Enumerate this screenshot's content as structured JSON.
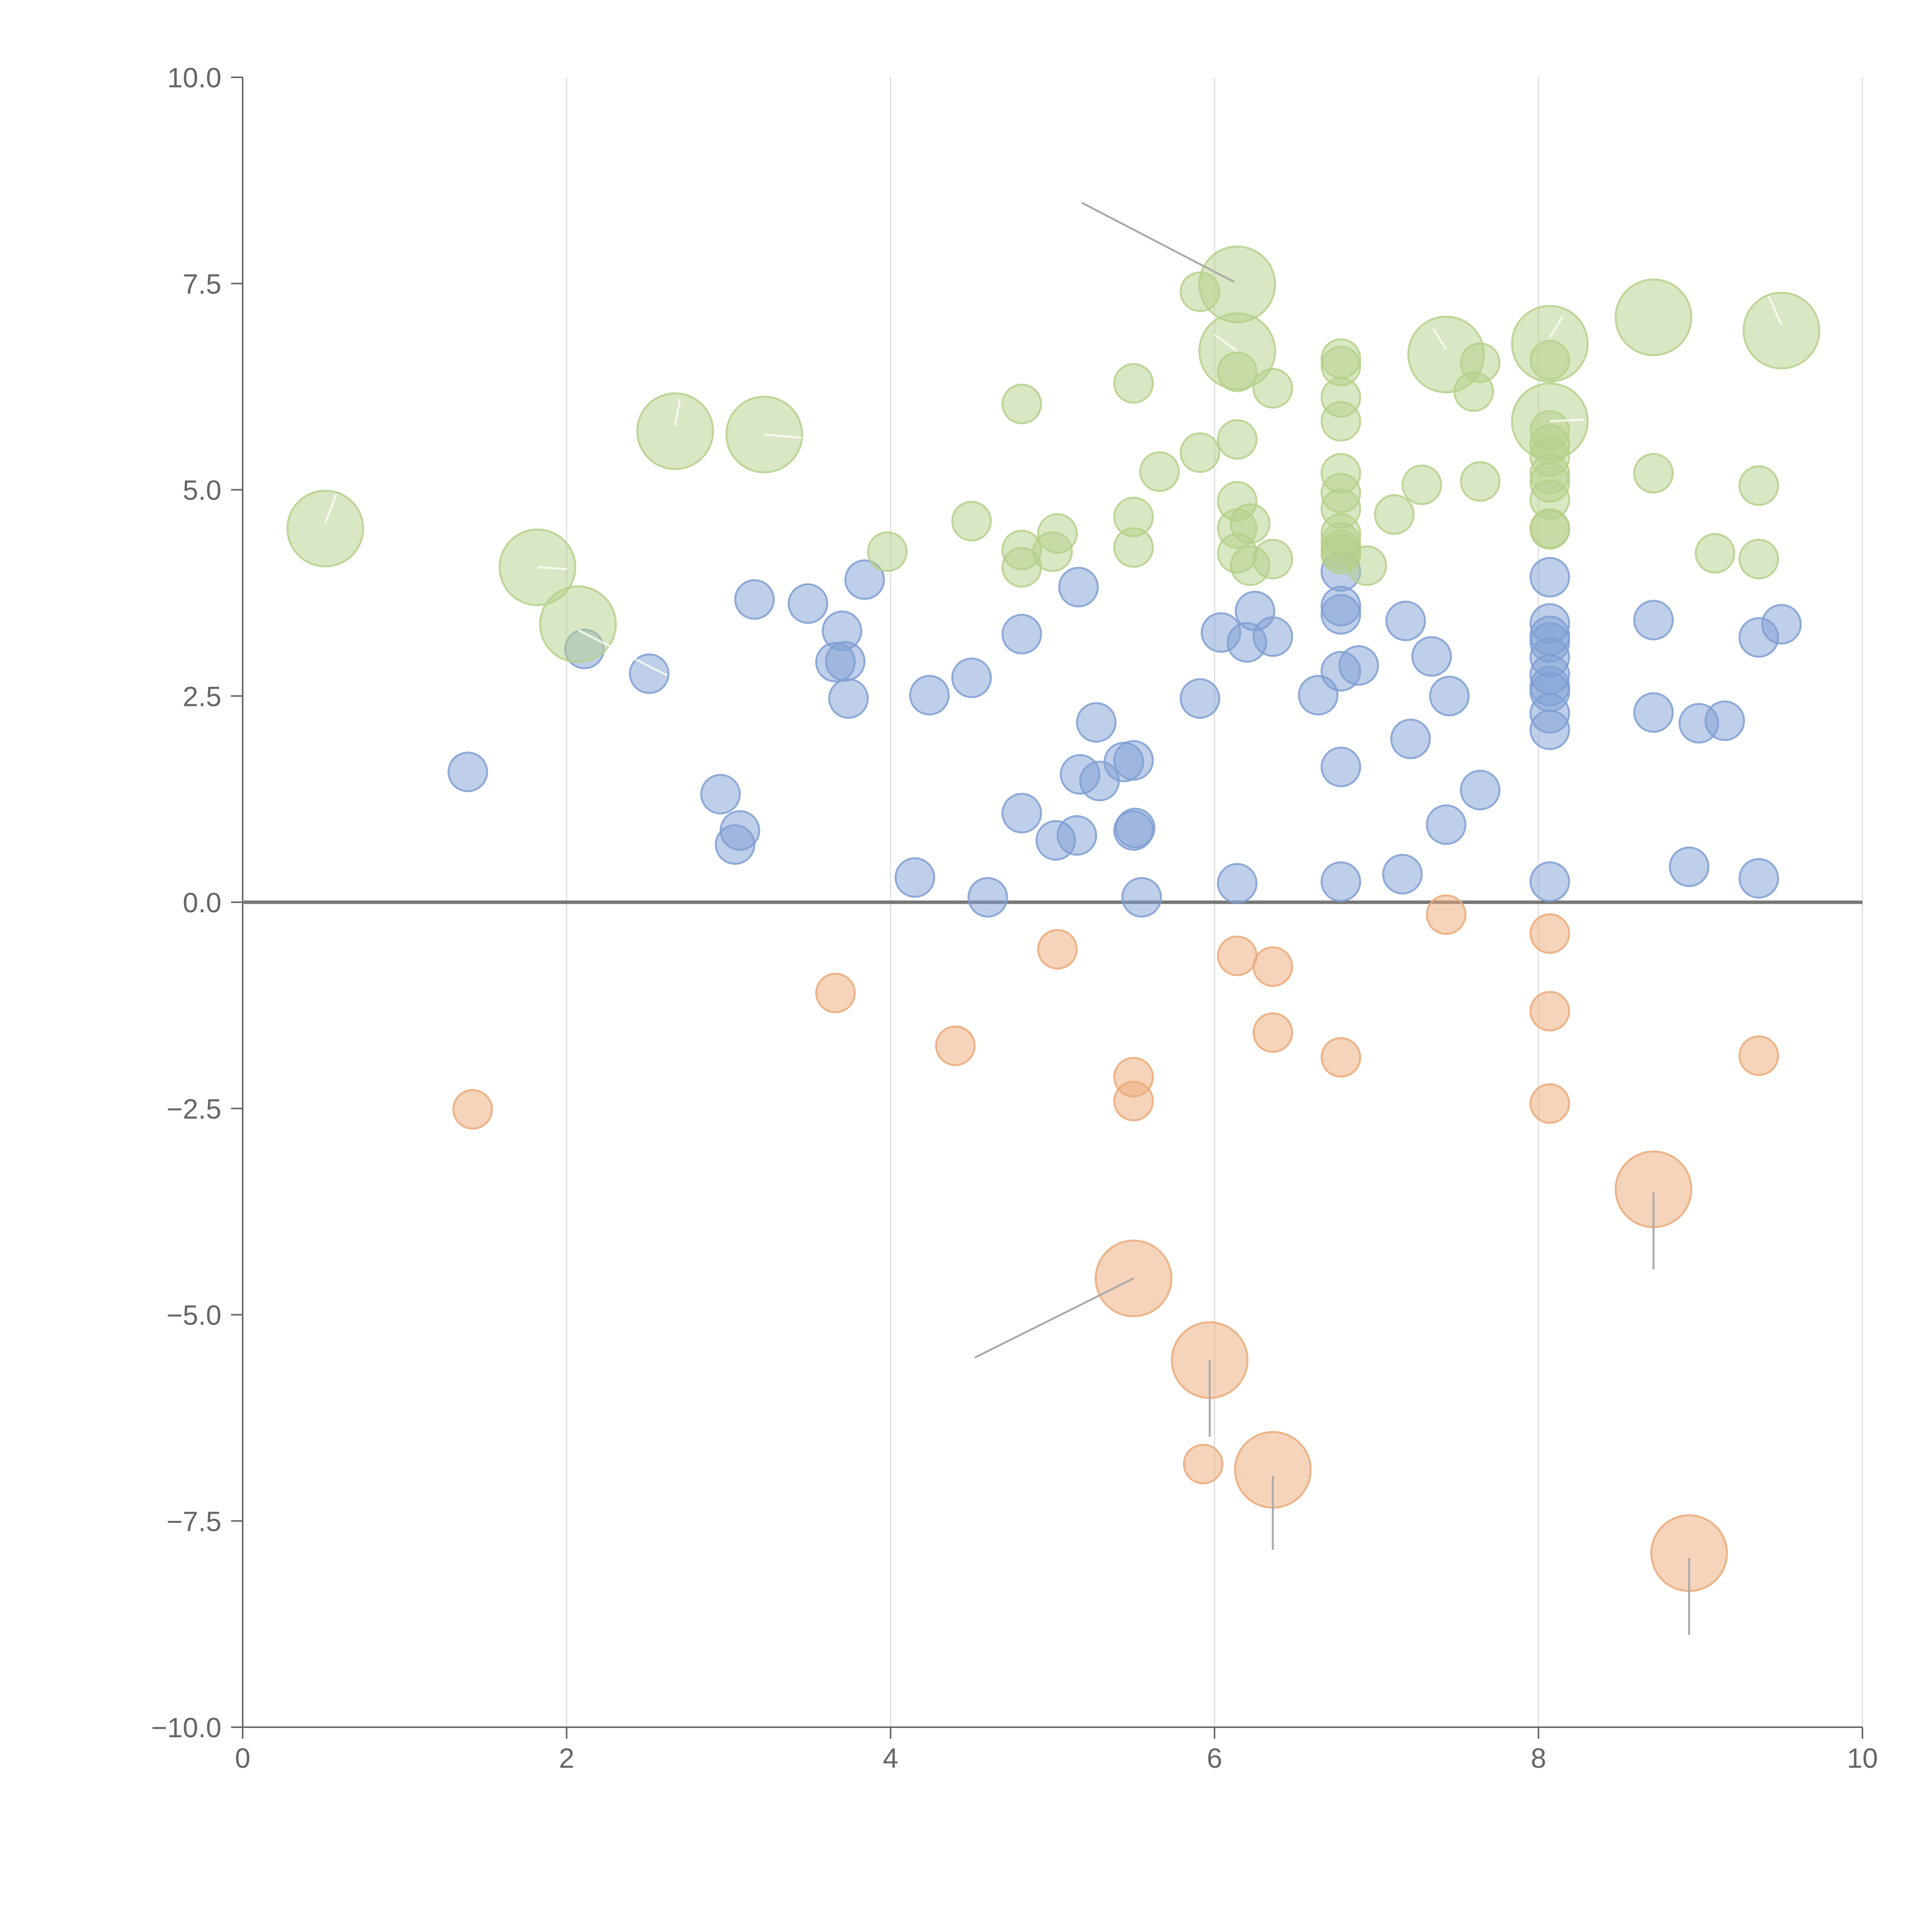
{
  "colors": {
    "blue": "#7f9fd4",
    "green": "#b5d08a",
    "orange": "#eba978",
    "axis": "#666666",
    "grid": "#dddddd",
    "zero_line": "#777777"
  },
  "chart_data": {
    "type": "scatter",
    "title": "",
    "xlabel": "",
    "ylabel": "",
    "xlim": [
      0,
      10
    ],
    "ylim": [
      -10,
      10
    ],
    "x_ticks": [
      "0",
      "2",
      "4",
      "6",
      "8",
      "10"
    ],
    "y_ticks": [
      "10.0",
      "7.5",
      "5.0",
      "2.5",
      "0.0",
      "−2.5",
      "−5.0",
      "−7.5",
      "−10.0"
    ],
    "x_tick_values": [
      0,
      2,
      4,
      6,
      8,
      10
    ],
    "y_tick_values": [
      10,
      7.5,
      5,
      2.5,
      0,
      -2.5,
      -5,
      -7.5,
      -10
    ],
    "grid": "vertical",
    "reference_line_y": 0,
    "series": [
      {
        "color": "#7f9fd4",
        "points": [
          {
            "x": 1.39,
            "y": 1.58
          },
          {
            "x": 2.11,
            "y": 3.07
          },
          {
            "x": 2.51,
            "y": 2.77
          },
          {
            "x": 2.95,
            "y": 1.31
          },
          {
            "x": 3.04,
            "y": 0.7
          },
          {
            "x": 3.07,
            "y": 0.87
          },
          {
            "x": 3.16,
            "y": 3.67
          },
          {
            "x": 3.49,
            "y": 3.62
          },
          {
            "x": 3.66,
            "y": 2.91
          },
          {
            "x": 3.7,
            "y": 3.29
          },
          {
            "x": 3.72,
            "y": 2.92
          },
          {
            "x": 3.74,
            "y": 2.47
          },
          {
            "x": 3.84,
            "y": 3.91
          },
          {
            "x": 4.15,
            "y": 0.3
          },
          {
            "x": 4.24,
            "y": 2.51
          },
          {
            "x": 4.5,
            "y": 2.72
          },
          {
            "x": 4.6,
            "y": 0.06
          },
          {
            "x": 4.81,
            "y": 3.25
          },
          {
            "x": 4.81,
            "y": 1.08
          },
          {
            "x": 5.02,
            "y": 0.75
          },
          {
            "x": 5.15,
            "y": 0.81
          },
          {
            "x": 5.16,
            "y": 3.82
          },
          {
            "x": 5.17,
            "y": 1.55
          },
          {
            "x": 5.27,
            "y": 2.18
          },
          {
            "x": 5.29,
            "y": 1.47
          },
          {
            "x": 5.44,
            "y": 1.7
          },
          {
            "x": 5.5,
            "y": 1.72
          },
          {
            "x": 5.5,
            "y": 0.87
          },
          {
            "x": 5.51,
            "y": 0.9
          },
          {
            "x": 5.55,
            "y": 0.06
          },
          {
            "x": 5.91,
            "y": 2.47
          },
          {
            "x": 6.04,
            "y": 3.27
          },
          {
            "x": 6.14,
            "y": 0.23
          },
          {
            "x": 6.2,
            "y": 3.15
          },
          {
            "x": 6.25,
            "y": 3.53
          },
          {
            "x": 6.36,
            "y": 3.22
          },
          {
            "x": 6.64,
            "y": 2.51
          },
          {
            "x": 6.78,
            "y": 4.01
          },
          {
            "x": 6.78,
            "y": 3.59
          },
          {
            "x": 6.78,
            "y": 3.49
          },
          {
            "x": 6.78,
            "y": 2.8
          },
          {
            "x": 6.78,
            "y": 1.64
          },
          {
            "x": 6.78,
            "y": 0.25
          },
          {
            "x": 6.89,
            "y": 2.87
          },
          {
            "x": 7.16,
            "y": 0.34
          },
          {
            "x": 7.18,
            "y": 3.41
          },
          {
            "x": 7.21,
            "y": 1.98
          },
          {
            "x": 7.34,
            "y": 2.98
          },
          {
            "x": 7.43,
            "y": 0.94
          },
          {
            "x": 7.45,
            "y": 2.5
          },
          {
            "x": 7.64,
            "y": 1.36
          },
          {
            "x": 8.07,
            "y": 3.94
          },
          {
            "x": 8.07,
            "y": 3.38
          },
          {
            "x": 8.07,
            "y": 3.23
          },
          {
            "x": 8.07,
            "y": 3.15
          },
          {
            "x": 8.07,
            "y": 2.97
          },
          {
            "x": 8.07,
            "y": 2.76
          },
          {
            "x": 8.07,
            "y": 2.62
          },
          {
            "x": 8.07,
            "y": 2.55
          },
          {
            "x": 8.07,
            "y": 2.29
          },
          {
            "x": 8.07,
            "y": 2.09
          },
          {
            "x": 8.07,
            "y": 0.25
          },
          {
            "x": 8.71,
            "y": 3.42
          },
          {
            "x": 8.71,
            "y": 2.3
          },
          {
            "x": 8.93,
            "y": 0.43
          },
          {
            "x": 8.99,
            "y": 2.17
          },
          {
            "x": 9.15,
            "y": 2.2
          },
          {
            "x": 9.36,
            "y": 3.21
          },
          {
            "x": 9.36,
            "y": 0.29
          },
          {
            "x": 9.5,
            "y": 3.37
          }
        ]
      },
      {
        "color": "#b5d08a",
        "points": [
          {
            "x": 0.51,
            "y": 4.53,
            "size": "large"
          },
          {
            "x": 1.82,
            "y": 4.06,
            "size": "large"
          },
          {
            "x": 2.07,
            "y": 3.37,
            "size": "large"
          },
          {
            "x": 2.67,
            "y": 5.71,
            "size": "large"
          },
          {
            "x": 3.22,
            "y": 5.67,
            "size": "large"
          },
          {
            "x": 3.98,
            "y": 4.25
          },
          {
            "x": 4.5,
            "y": 4.62
          },
          {
            "x": 4.81,
            "y": 6.04
          },
          {
            "x": 4.81,
            "y": 4.27
          },
          {
            "x": 4.81,
            "y": 4.06
          },
          {
            "x": 5.0,
            "y": 4.25
          },
          {
            "x": 5.03,
            "y": 4.47
          },
          {
            "x": 5.5,
            "y": 6.29
          },
          {
            "x": 5.5,
            "y": 4.67
          },
          {
            "x": 5.5,
            "y": 4.3
          },
          {
            "x": 5.66,
            "y": 5.22
          },
          {
            "x": 5.91,
            "y": 7.4
          },
          {
            "x": 5.91,
            "y": 5.45
          },
          {
            "x": 6.14,
            "y": 7.49,
            "size": "large"
          },
          {
            "x": 6.14,
            "y": 6.68,
            "size": "large"
          },
          {
            "x": 6.14,
            "y": 6.43
          },
          {
            "x": 6.14,
            "y": 5.61
          },
          {
            "x": 6.14,
            "y": 4.86
          },
          {
            "x": 6.14,
            "y": 4.53
          },
          {
            "x": 6.14,
            "y": 4.23
          },
          {
            "x": 6.22,
            "y": 4.59
          },
          {
            "x": 6.22,
            "y": 4.08
          },
          {
            "x": 6.36,
            "y": 6.23
          },
          {
            "x": 6.36,
            "y": 4.16
          },
          {
            "x": 6.78,
            "y": 6.59
          },
          {
            "x": 6.78,
            "y": 6.5
          },
          {
            "x": 6.78,
            "y": 6.12
          },
          {
            "x": 6.78,
            "y": 5.83
          },
          {
            "x": 6.78,
            "y": 5.2
          },
          {
            "x": 6.78,
            "y": 4.96
          },
          {
            "x": 6.78,
            "y": 4.77
          },
          {
            "x": 6.78,
            "y": 4.47
          },
          {
            "x": 6.78,
            "y": 4.36
          },
          {
            "x": 6.78,
            "y": 4.27
          },
          {
            "x": 6.78,
            "y": 4.22
          },
          {
            "x": 6.94,
            "y": 4.08
          },
          {
            "x": 7.11,
            "y": 4.7
          },
          {
            "x": 7.28,
            "y": 5.06
          },
          {
            "x": 7.43,
            "y": 6.64,
            "size": "large"
          },
          {
            "x": 7.6,
            "y": 6.19
          },
          {
            "x": 7.64,
            "y": 6.54
          },
          {
            "x": 7.64,
            "y": 5.1
          },
          {
            "x": 8.07,
            "y": 6.77,
            "size": "large"
          },
          {
            "x": 8.07,
            "y": 6.57
          },
          {
            "x": 8.07,
            "y": 5.83,
            "size": "large"
          },
          {
            "x": 8.07,
            "y": 5.72
          },
          {
            "x": 8.07,
            "y": 5.55
          },
          {
            "x": 8.07,
            "y": 5.4
          },
          {
            "x": 8.07,
            "y": 5.19
          },
          {
            "x": 8.07,
            "y": 5.09
          },
          {
            "x": 8.07,
            "y": 4.88
          },
          {
            "x": 8.07,
            "y": 4.53
          },
          {
            "x": 8.07,
            "y": 4.52
          },
          {
            "x": 8.71,
            "y": 7.09,
            "size": "large"
          },
          {
            "x": 8.71,
            "y": 5.2
          },
          {
            "x": 9.09,
            "y": 4.23
          },
          {
            "x": 9.36,
            "y": 5.05
          },
          {
            "x": 9.36,
            "y": 4.16
          },
          {
            "x": 9.5,
            "y": 6.93,
            "size": "large"
          }
        ]
      },
      {
        "color": "#eba978",
        "points": [
          {
            "x": 1.42,
            "y": -2.51
          },
          {
            "x": 3.66,
            "y": -1.1
          },
          {
            "x": 4.4,
            "y": -1.74
          },
          {
            "x": 5.03,
            "y": -0.57
          },
          {
            "x": 5.5,
            "y": -2.12
          },
          {
            "x": 5.5,
            "y": -2.41
          },
          {
            "x": 5.5,
            "y": -4.56,
            "size": "large"
          },
          {
            "x": 5.93,
            "y": -6.81
          },
          {
            "x": 5.97,
            "y": -5.55,
            "size": "large"
          },
          {
            "x": 6.14,
            "y": -0.65
          },
          {
            "x": 6.36,
            "y": -0.78
          },
          {
            "x": 6.36,
            "y": -1.58
          },
          {
            "x": 6.36,
            "y": -6.88,
            "size": "large"
          },
          {
            "x": 6.78,
            "y": -1.88
          },
          {
            "x": 7.43,
            "y": -0.15
          },
          {
            "x": 8.07,
            "y": -0.38
          },
          {
            "x": 8.07,
            "y": -1.32
          },
          {
            "x": 8.07,
            "y": -2.44
          },
          {
            "x": 8.71,
            "y": -3.48,
            "size": "large"
          },
          {
            "x": 8.93,
            "y": -7.89,
            "size": "large"
          },
          {
            "x": 9.36,
            "y": -1.86
          }
        ]
      }
    ]
  }
}
